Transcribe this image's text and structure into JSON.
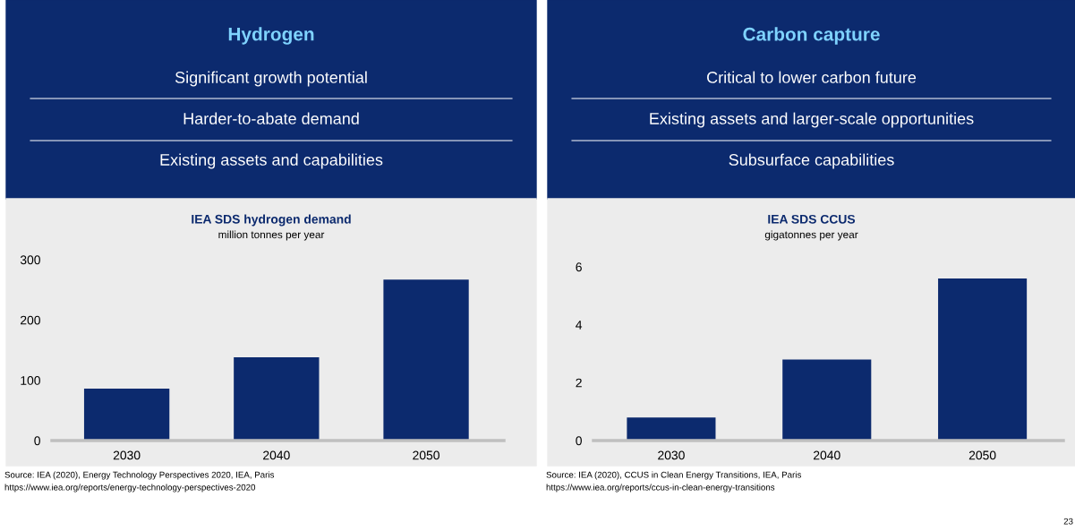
{
  "chart_data": [
    {
      "type": "bar",
      "title": "IEA SDS hydrogen demand",
      "subtitle": "million tonnes per year",
      "categories": [
        "2030",
        "2040",
        "2050"
      ],
      "values": [
        86,
        138,
        267
      ],
      "color": "#0c2a6e",
      "ylim": [
        0,
        300
      ],
      "yticks": [
        0,
        100,
        200,
        300
      ],
      "grid": false,
      "legend": false,
      "annotations": [
        "Hydrogen",
        "Significant growth potential",
        "Harder-to-abate demand",
        "Existing assets and capabilities",
        "Source: IEA (2020), Energy Technology Perspectives 2020, IEA, Paris",
        "https://www.iea.org/reports/energy-technology-perspectives-2020"
      ]
    },
    {
      "type": "bar",
      "title": "IEA SDS CCUS",
      "subtitle": "gigatonnes per year",
      "categories": [
        "2030",
        "2040",
        "2050"
      ],
      "values": [
        0.8,
        2.8,
        5.6
      ],
      "color": "#0c2a6e",
      "ylim": [
        0,
        6
      ],
      "yticks": [
        0,
        2,
        4,
        6
      ],
      "grid": false,
      "legend": false,
      "annotations": [
        "Carbon capture",
        "Critical to lower carbon future",
        "Existing assets and larger-scale opportunities",
        "Subsurface capabilities",
        "Source: IEA (2020), CCUS in Clean Energy Transitions, IEA, Paris",
        "https://www.iea.org/reports/ccus-in-clean-energy-transitions",
        "23"
      ]
    }
  ]
}
